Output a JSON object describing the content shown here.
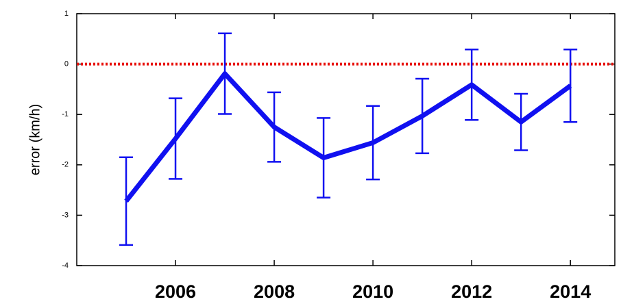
{
  "chart_data": {
    "type": "line",
    "y_label": "error (km/h)",
    "x": [
      2005,
      2006,
      2007,
      2008,
      2009,
      2010,
      2011,
      2012,
      2013,
      2014
    ],
    "series": [
      {
        "color": "#1010f0",
        "values": [
          -2.72,
          -1.48,
          -0.19,
          -1.25,
          -1.86,
          -1.56,
          -1.03,
          -0.41,
          -1.15,
          -0.43
        ],
        "errors": [
          0.87,
          0.8,
          0.8,
          0.69,
          0.79,
          0.73,
          0.74,
          0.7,
          0.56,
          0.72
        ]
      }
    ],
    "reference_line": {
      "value": 0,
      "color": "#e8120c"
    },
    "xlim": [
      2004,
      2014.9
    ],
    "xticks": [
      2006,
      2008,
      2010,
      2012,
      2014
    ],
    "ylim": [
      -4,
      1
    ],
    "yticks": [
      -4,
      -3,
      -2,
      -1,
      0,
      1
    ]
  }
}
